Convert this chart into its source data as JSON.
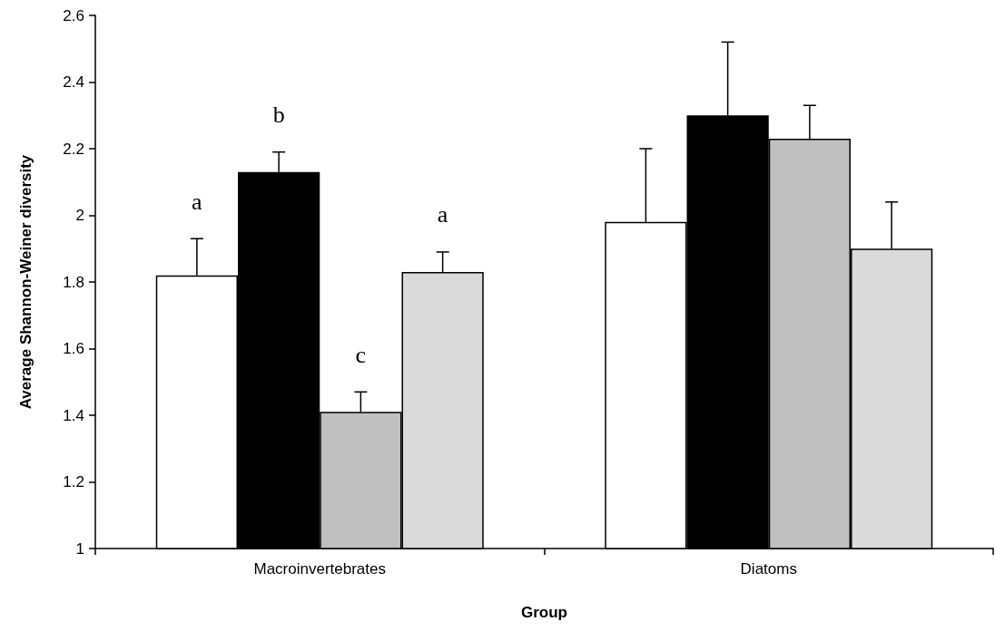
{
  "chart_data": {
    "type": "bar",
    "xlabel": "Group",
    "ylabel": "Average Shannon-Weiner diversity",
    "categories": [
      "Macroinvertebrates",
      "Diatoms"
    ],
    "series": [
      {
        "color": "#ffffff",
        "values": [
          1.82,
          1.98
        ],
        "errors": [
          [
            1.82,
            1.93
          ],
          [
            1.98,
            2.2
          ]
        ],
        "value_labels": [
          "a",
          null
        ]
      },
      {
        "color": "#000000",
        "values": [
          2.13,
          2.3
        ],
        "errors": [
          [
            2.13,
            2.19
          ],
          [
            2.3,
            2.52
          ]
        ],
        "value_labels": [
          "b",
          null
        ]
      },
      {
        "color": "#c0c0c0",
        "values": [
          1.41,
          2.23
        ],
        "errors": [
          [
            1.41,
            1.47
          ],
          [
            2.23,
            2.33
          ]
        ],
        "value_labels": [
          "c",
          null
        ]
      },
      {
        "color": "#dadada",
        "values": [
          1.83,
          1.9
        ],
        "errors": [
          [
            1.83,
            1.89
          ],
          [
            1.9,
            2.04
          ]
        ],
        "value_labels": [
          "a",
          null
        ]
      }
    ],
    "ylim": [
      1,
      2.6
    ],
    "yticks": [
      1,
      1.2,
      1.4,
      1.6,
      1.8,
      2,
      2.2,
      2.4,
      2.6
    ],
    "grid": false
  }
}
